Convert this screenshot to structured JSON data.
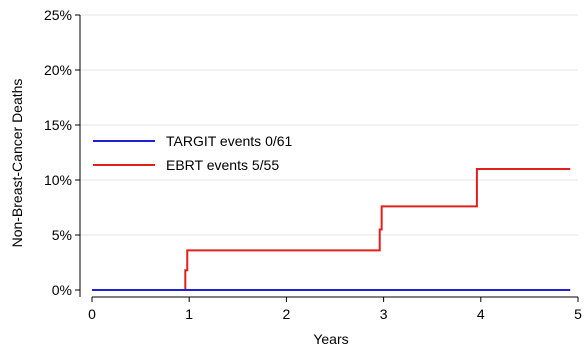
{
  "chart_data": {
    "type": "line",
    "step": true,
    "title": "",
    "xlabel": "Years",
    "ylabel": "Non-Breast-Cancer Deaths",
    "xlim": [
      0,
      5
    ],
    "ylim": [
      0,
      25
    ],
    "x_ticks": [
      0,
      1,
      2,
      3,
      4,
      5
    ],
    "y_ticks": [
      0,
      5,
      10,
      15,
      20,
      25
    ],
    "y_tick_labels": [
      "0%",
      "5%",
      "10%",
      "15%",
      "20%",
      "25%"
    ],
    "grid": "horizontal",
    "legend_position": "middle-left",
    "series": [
      {
        "name": "TARGIT events 0/61",
        "color": "#1f1fd6",
        "x": [
          0,
          4.92
        ],
        "y": [
          0,
          0
        ]
      },
      {
        "name": "EBRT events 5/55",
        "color": "#e0201b",
        "x": [
          0,
          0.96,
          0.96,
          0.98,
          0.98,
          2.96,
          2.96,
          2.98,
          2.98,
          3.96,
          3.96,
          4.92
        ],
        "y": [
          0,
          0,
          1.8,
          1.8,
          3.6,
          3.6,
          5.5,
          5.5,
          7.6,
          7.6,
          11.0,
          11.0
        ]
      }
    ]
  }
}
